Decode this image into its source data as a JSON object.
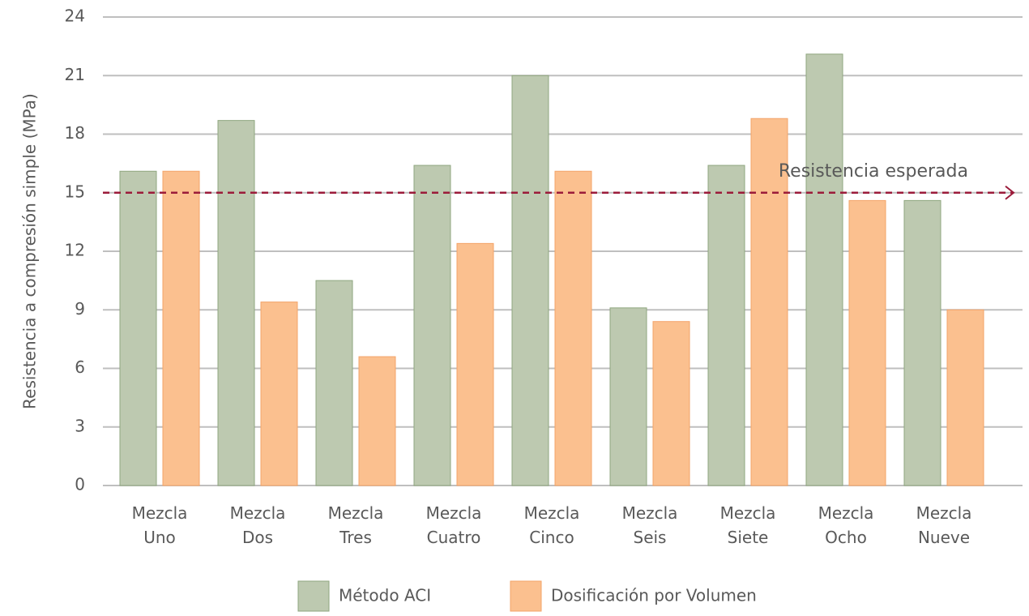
{
  "chart_data": {
    "type": "bar",
    "ylabel": "Resistencia a compresión simple (MPa)",
    "categories": [
      "Mezcla Uno",
      "Mezcla Dos",
      "Mezcla Tres",
      "Mezcla Cuatro",
      "Mezcla Cinco",
      "Mezcla Seis",
      "Mezcla Siete",
      "Mezcla Ocho",
      "Mezcla Nueve"
    ],
    "series": [
      {
        "name": "Método ACI",
        "color": "#bdc9b0",
        "values": [
          16.1,
          18.7,
          10.5,
          16.4,
          21.0,
          9.1,
          16.4,
          22.1,
          14.6
        ]
      },
      {
        "name": "Dosificación por Volumen",
        "color": "#fbc08f",
        "values": [
          16.1,
          9.4,
          6.6,
          12.4,
          16.1,
          8.4,
          18.8,
          14.6,
          9.0
        ]
      }
    ],
    "reference_line": {
      "value": 15,
      "label": "Resistencia esperada",
      "color": "#9b1b3a"
    },
    "ylim": [
      0,
      24
    ],
    "yticks": [
      0,
      3,
      6,
      9,
      12,
      15,
      18,
      21,
      24
    ],
    "grid": true,
    "legend": "bottom"
  }
}
